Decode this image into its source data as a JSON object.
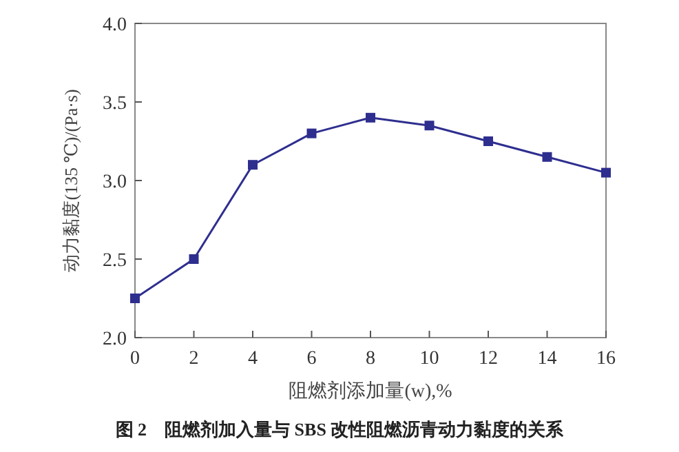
{
  "chart_data": {
    "type": "line",
    "xlabel": "阻燃剂添加量(w),%",
    "ylabel": "动力黏度(135 ℃)/(Pa·s)",
    "x": [
      0,
      2,
      4,
      6,
      8,
      10,
      12,
      14,
      16
    ],
    "series": [
      {
        "color": "#2e2e8f",
        "values": [
          2.25,
          2.5,
          3.1,
          3.3,
          3.4,
          3.35,
          3.25,
          3.15,
          3.05
        ]
      }
    ],
    "xlim": [
      0,
      16
    ],
    "xticks": [
      0,
      2,
      4,
      6,
      8,
      10,
      12,
      14,
      16
    ],
    "ylim": [
      2.0,
      4.0
    ],
    "yticks": [
      {
        "value": 2.0,
        "label": "2.0"
      },
      {
        "value": 2.5,
        "label": "2.5"
      },
      {
        "value": 3.0,
        "label": "3.0"
      },
      {
        "value": 3.5,
        "label": "3.5"
      },
      {
        "value": 4.0,
        "label": "4.0"
      }
    ],
    "marker": "square",
    "line_style": "solid",
    "grid": false,
    "annotations": [
      "图 2　阻燃剂加入量与 SBS 改性阻燃沥青动力黏度的关系"
    ]
  }
}
